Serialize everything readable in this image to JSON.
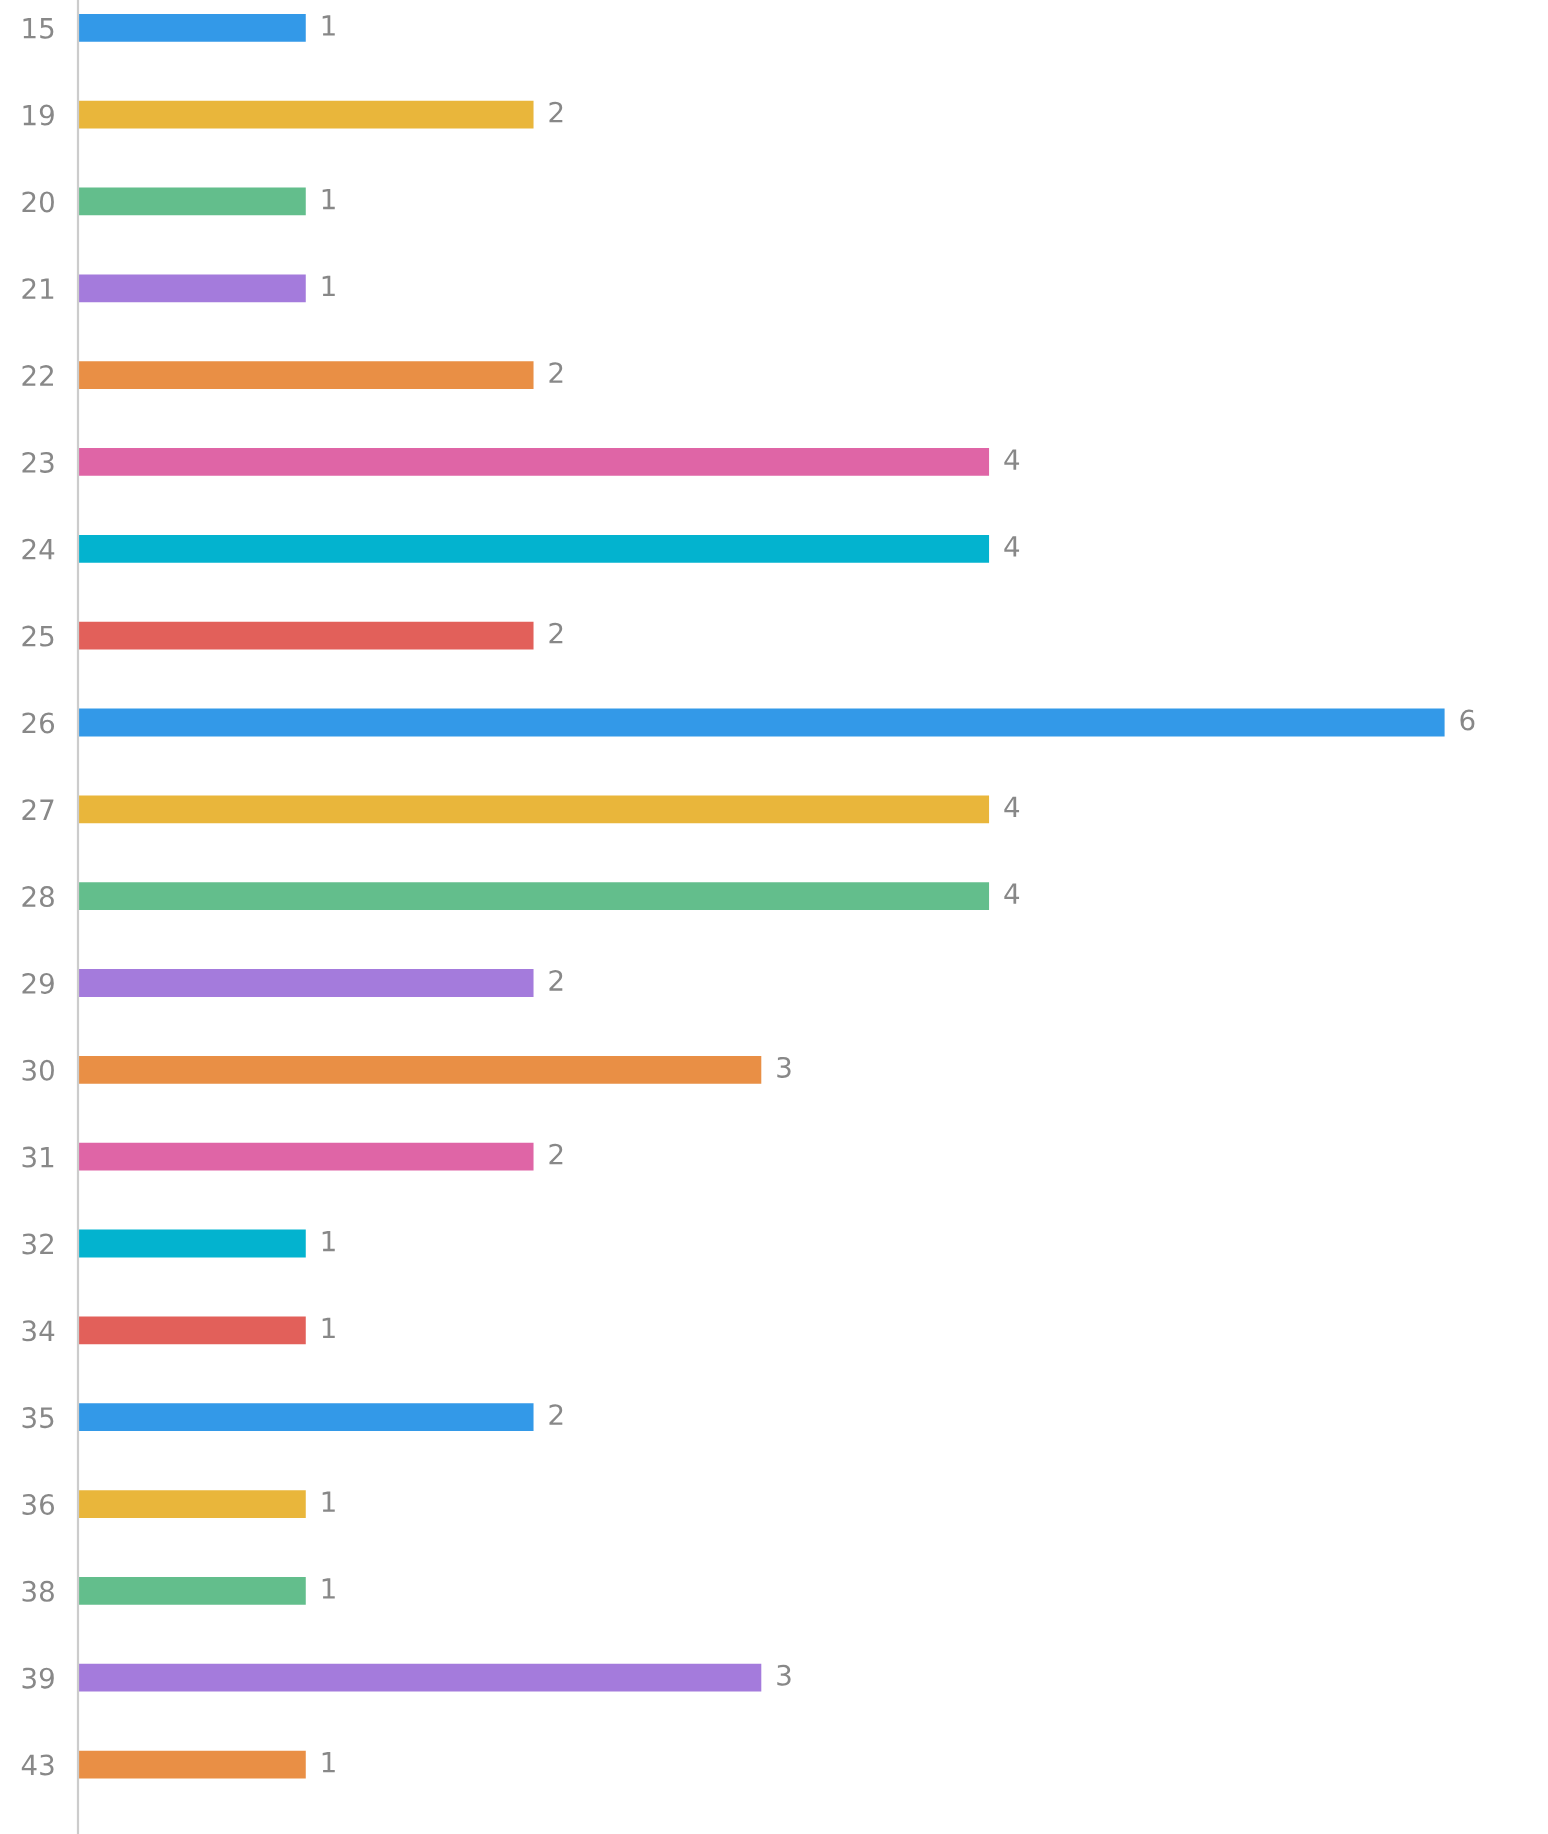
{
  "chart_data": {
    "type": "bar",
    "orientation": "horizontal",
    "categories": [
      "15",
      "19",
      "20",
      "21",
      "22",
      "23",
      "24",
      "25",
      "26",
      "27",
      "28",
      "29",
      "30",
      "31",
      "32",
      "34",
      "35",
      "36",
      "38",
      "39",
      "43"
    ],
    "values": [
      1,
      2,
      1,
      1,
      2,
      4,
      4,
      2,
      6,
      4,
      4,
      2,
      3,
      2,
      1,
      1,
      2,
      1,
      1,
      3,
      1
    ],
    "colors": [
      "#3399e8",
      "#e9b63b",
      "#63be8c",
      "#a47bdc",
      "#e98f45",
      "#df65a6",
      "#03b3cf",
      "#e2605a",
      "#3399e8",
      "#e9b63b",
      "#63be8c",
      "#a47bdc",
      "#e98f45",
      "#df65a6",
      "#03b3cf",
      "#e2605a",
      "#3399e8",
      "#e9b63b",
      "#63be8c",
      "#a47bdc",
      "#e98f45"
    ],
    "data_labels": true,
    "tick_labels": "y"
  }
}
